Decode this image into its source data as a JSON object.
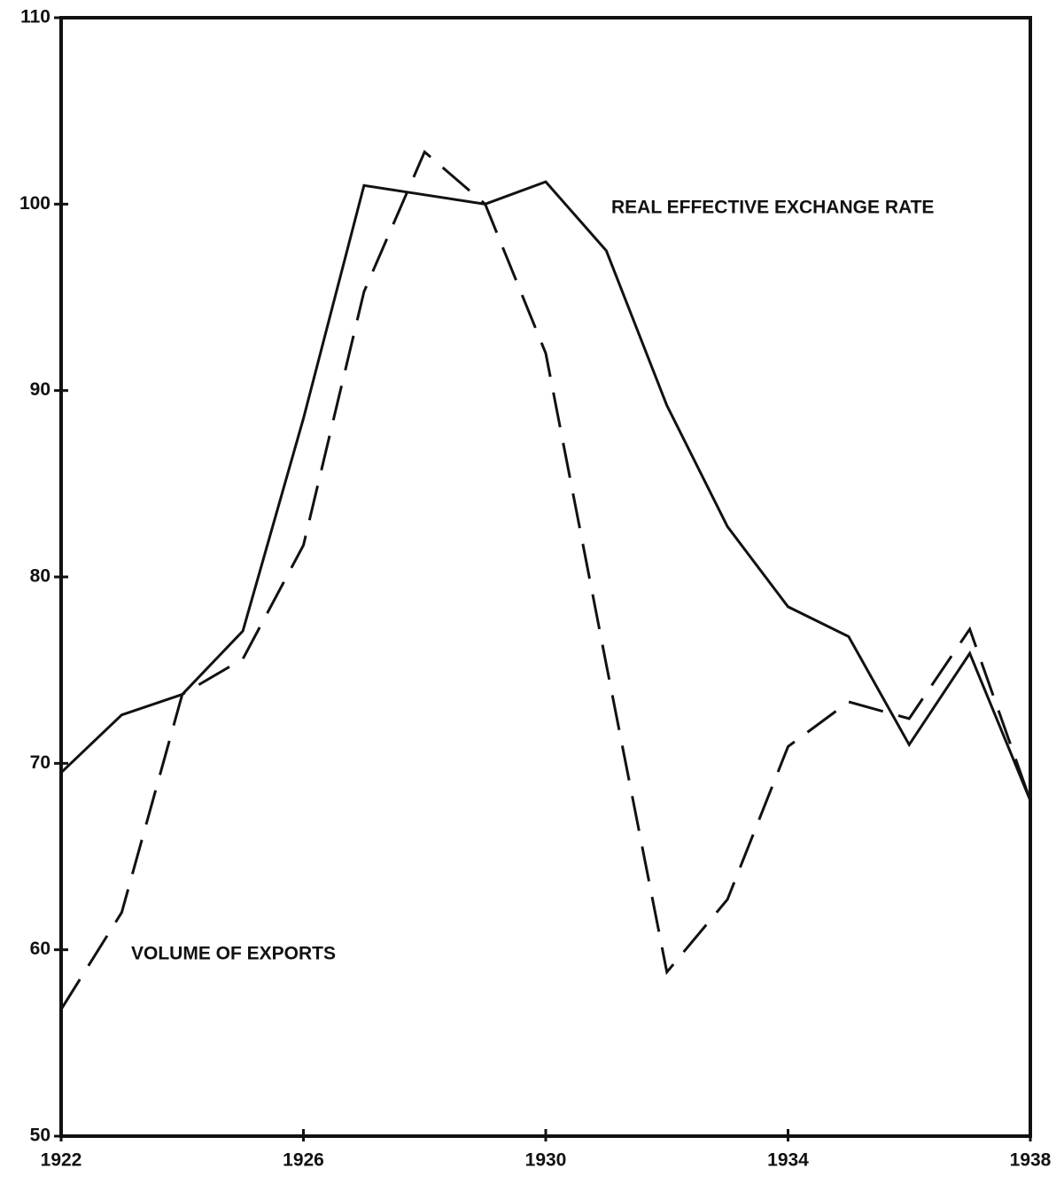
{
  "chart_data": {
    "type": "line",
    "x": [
      1922,
      1923,
      1924,
      1925,
      1926,
      1927,
      1928,
      1929,
      1930,
      1931,
      1932,
      1933,
      1934,
      1935,
      1936,
      1937,
      1938
    ],
    "series": [
      {
        "name": "REAL EFFECTIVE EXCHANGE RATE",
        "color": "#111111",
        "dash": "solid",
        "values": [
          69.5,
          72.6,
          73.7,
          77.1,
          88.5,
          101,
          100.5,
          100,
          101.2,
          97.5,
          89.2,
          82.7,
          78.4,
          76.8,
          71,
          75.9,
          68
        ]
      },
      {
        "name": "VOLUME OF EXPORTS",
        "color": "#111111",
        "dash": "dashed",
        "values": [
          56.8,
          62,
          73.7,
          75.6,
          81.7,
          95.3,
          102.8,
          100,
          92,
          75.3,
          58.8,
          62.7,
          70.9,
          73.3,
          72.4,
          77.2,
          68
        ]
      }
    ],
    "xlim": [
      1922,
      1938
    ],
    "xticks": [
      1922,
      1926,
      1930,
      1934,
      1938
    ],
    "ylim": [
      50,
      110
    ],
    "yticks": [
      50,
      60,
      70,
      80,
      90,
      100,
      110
    ],
    "grid": false
  }
}
